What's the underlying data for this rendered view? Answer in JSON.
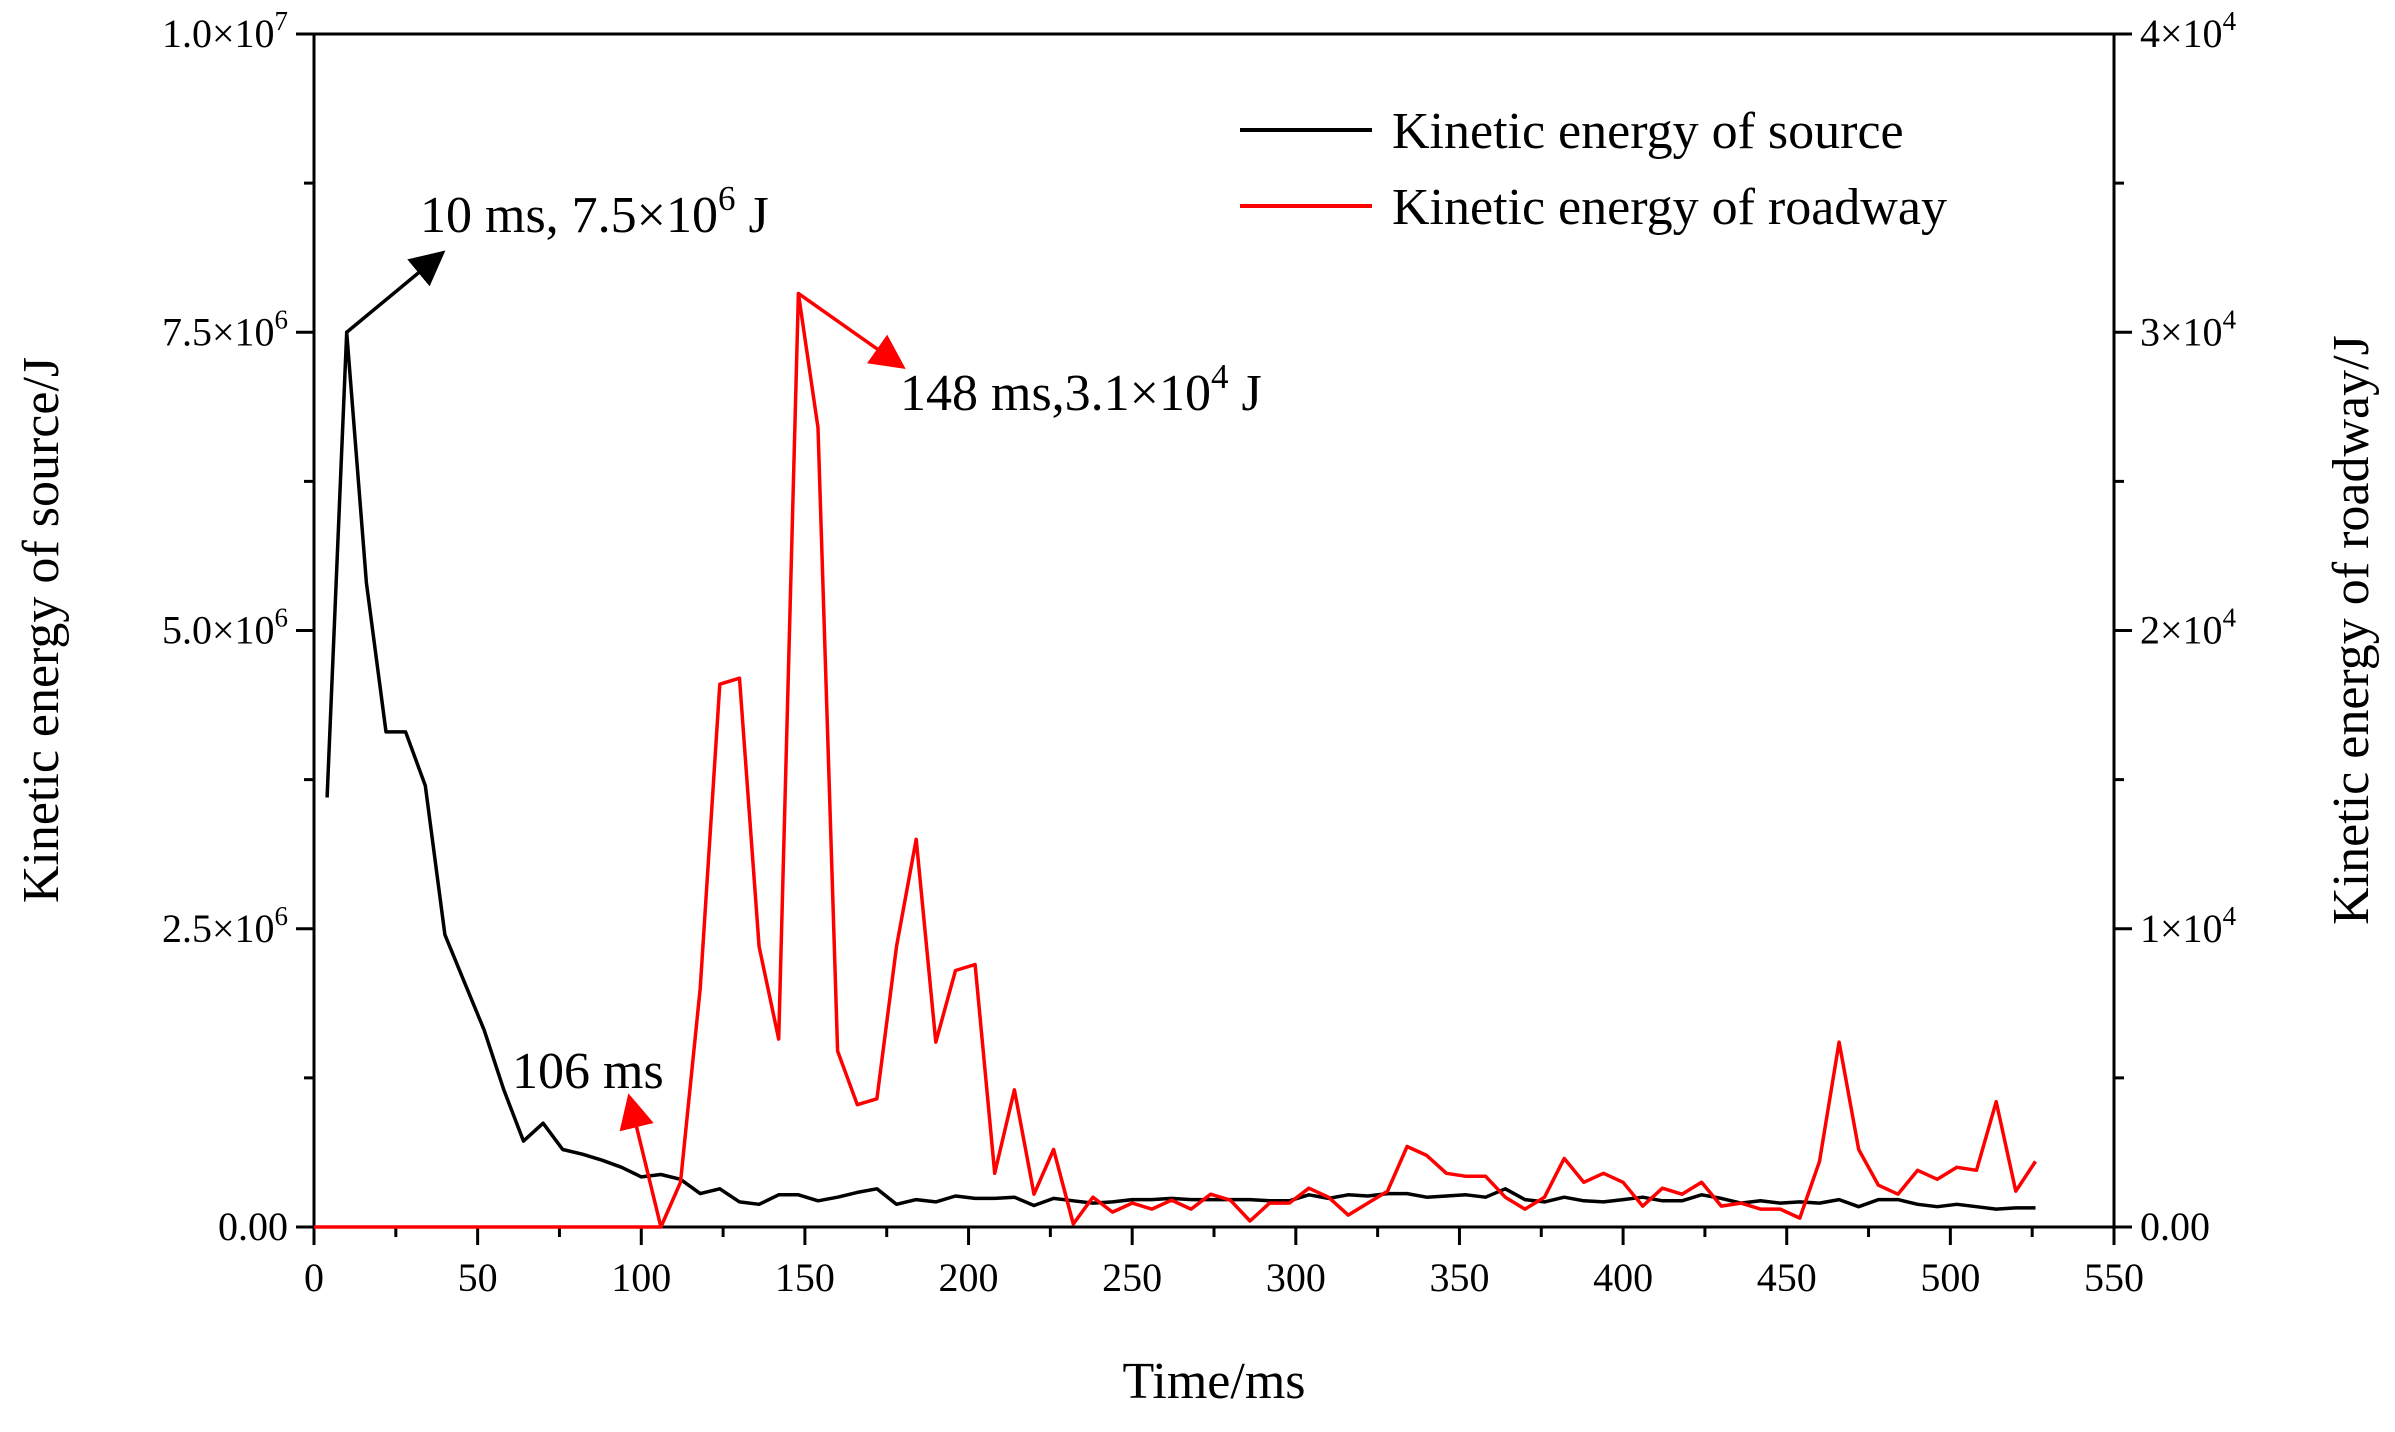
{
  "chart_data": {
    "type": "line",
    "title": "",
    "xlabel": "Time/ms",
    "ylabel_left": "Kinetic energy of source/J",
    "ylabel_right": "Kinetic energy of roadway/J",
    "xlim": [
      0,
      550
    ],
    "ylim_left": [
      0,
      10000000
    ],
    "ylim_right": [
      0,
      40000
    ],
    "grid": false,
    "legend_position": "top-right",
    "x_ticks": [
      "0",
      "50",
      "100",
      "150",
      "200",
      "250",
      "300",
      "350",
      "400",
      "450",
      "500",
      "550"
    ],
    "y_ticks_left": [
      {
        "value": 0,
        "mantissa": "0.00",
        "exp": ""
      },
      {
        "value": 2500000,
        "mantissa": "2.5×10",
        "exp": "6"
      },
      {
        "value": 5000000,
        "mantissa": "5.0×10",
        "exp": "6"
      },
      {
        "value": 7500000,
        "mantissa": "7.5×10",
        "exp": "6"
      },
      {
        "value": 10000000,
        "mantissa": "1.0×10",
        "exp": "7"
      }
    ],
    "y_ticks_right": [
      {
        "value": 0,
        "mantissa": "0.00",
        "exp": ""
      },
      {
        "value": 10000,
        "mantissa": "1×10",
        "exp": "4"
      },
      {
        "value": 20000,
        "mantissa": "2×10",
        "exp": "4"
      },
      {
        "value": 30000,
        "mantissa": "3×10",
        "exp": "4"
      },
      {
        "value": 40000,
        "mantissa": "4×10",
        "exp": "4"
      }
    ],
    "series": [
      {
        "name": "Kinetic energy of source",
        "color": "#000000",
        "axis": "left",
        "x": [
          4,
          10,
          16,
          22,
          28,
          34,
          40,
          46,
          52,
          58,
          64,
          70,
          76,
          82,
          88,
          94,
          100,
          106,
          112,
          118,
          124,
          130,
          136,
          142,
          148,
          154,
          160,
          166,
          172,
          178,
          184,
          190,
          196,
          202,
          208,
          214,
          220,
          226,
          232,
          238,
          244,
          250,
          256,
          262,
          268,
          274,
          280,
          286,
          292,
          298,
          304,
          310,
          316,
          322,
          328,
          334,
          340,
          346,
          352,
          358,
          364,
          370,
          376,
          382,
          388,
          394,
          400,
          406,
          412,
          418,
          424,
          430,
          436,
          442,
          448,
          454,
          460,
          466,
          472,
          478,
          484,
          490,
          496,
          502,
          508,
          514,
          520,
          526
        ],
        "values": [
          3600000,
          7500000,
          5400000,
          4150000,
          4150000,
          3700000,
          2450000,
          2050000,
          1650000,
          1150000,
          720000,
          870000,
          650000,
          610000,
          560000,
          500000,
          420000,
          440000,
          400000,
          280000,
          320000,
          210000,
          190000,
          270000,
          270000,
          220000,
          250000,
          290000,
          320000,
          190000,
          230000,
          210000,
          260000,
          240000,
          240000,
          250000,
          180000,
          240000,
          220000,
          200000,
          210000,
          230000,
          230000,
          240000,
          230000,
          230000,
          230000,
          230000,
          220000,
          220000,
          270000,
          240000,
          270000,
          260000,
          280000,
          280000,
          250000,
          260000,
          270000,
          250000,
          320000,
          230000,
          210000,
          250000,
          220000,
          210000,
          230000,
          250000,
          220000,
          220000,
          270000,
          240000,
          200000,
          220000,
          200000,
          210000,
          200000,
          230000,
          170000,
          230000,
          230000,
          190000,
          170000,
          190000,
          170000,
          150000,
          160000,
          160000
        ]
      },
      {
        "name": "Kinetic energy of roadway",
        "color": "#ff0000",
        "axis": "right",
        "x": [
          0,
          4,
          10,
          16,
          22,
          28,
          34,
          40,
          46,
          52,
          58,
          64,
          70,
          76,
          82,
          88,
          94,
          100,
          106,
          112,
          118,
          124,
          130,
          136,
          142,
          148,
          154,
          160,
          166,
          172,
          178,
          184,
          190,
          196,
          202,
          208,
          214,
          220,
          226,
          232,
          238,
          244,
          250,
          256,
          262,
          268,
          274,
          280,
          286,
          292,
          298,
          304,
          310,
          316,
          322,
          328,
          334,
          340,
          346,
          352,
          358,
          364,
          370,
          376,
          382,
          388,
          394,
          400,
          406,
          412,
          418,
          424,
          430,
          436,
          442,
          448,
          454,
          460,
          466,
          472,
          478,
          484,
          490,
          496,
          502,
          508,
          514,
          520,
          526
        ],
        "values": [
          0,
          0,
          0,
          0,
          0,
          0,
          0,
          0,
          0,
          0,
          0,
          0,
          0,
          0,
          0,
          0,
          0,
          0,
          0,
          1500,
          8000,
          18200,
          18400,
          9400,
          6300,
          31300,
          26800,
          5900,
          4100,
          4300,
          9400,
          13000,
          6200,
          8600,
          8800,
          1800,
          4600,
          1100,
          2600,
          100,
          1000,
          500,
          800,
          600,
          900,
          600,
          1100,
          900,
          200,
          800,
          800,
          1300,
          1000,
          400,
          800,
          1200,
          2700,
          2400,
          1800,
          1700,
          1700,
          1000,
          600,
          1000,
          2300,
          1500,
          1800,
          1500,
          700,
          1300,
          1100,
          1500,
          700,
          800,
          600,
          600,
          300,
          2200,
          6200,
          2600,
          1400,
          1100,
          1900,
          1600,
          2000,
          1900,
          4200,
          1200,
          2200
        ]
      }
    ],
    "annotations": [
      {
        "id": "source-peak",
        "text": "10  ms, 7.5×10",
        "exp": "6",
        "suffix": " J",
        "color": "#000000",
        "point": {
          "x": 10,
          "y": 7500000,
          "axis": "left"
        }
      },
      {
        "id": "roadway-peak",
        "text": "148 ms,3.1×10",
        "exp": "4",
        "suffix": " J",
        "color": "#ff0000",
        "point": {
          "x": 148,
          "y": 31300,
          "axis": "right"
        }
      },
      {
        "id": "roadway-onset",
        "text": "106 ms",
        "exp": "",
        "suffix": "",
        "color": "#ff0000",
        "point": {
          "x": 106,
          "y": 0,
          "axis": "right"
        }
      }
    ]
  }
}
